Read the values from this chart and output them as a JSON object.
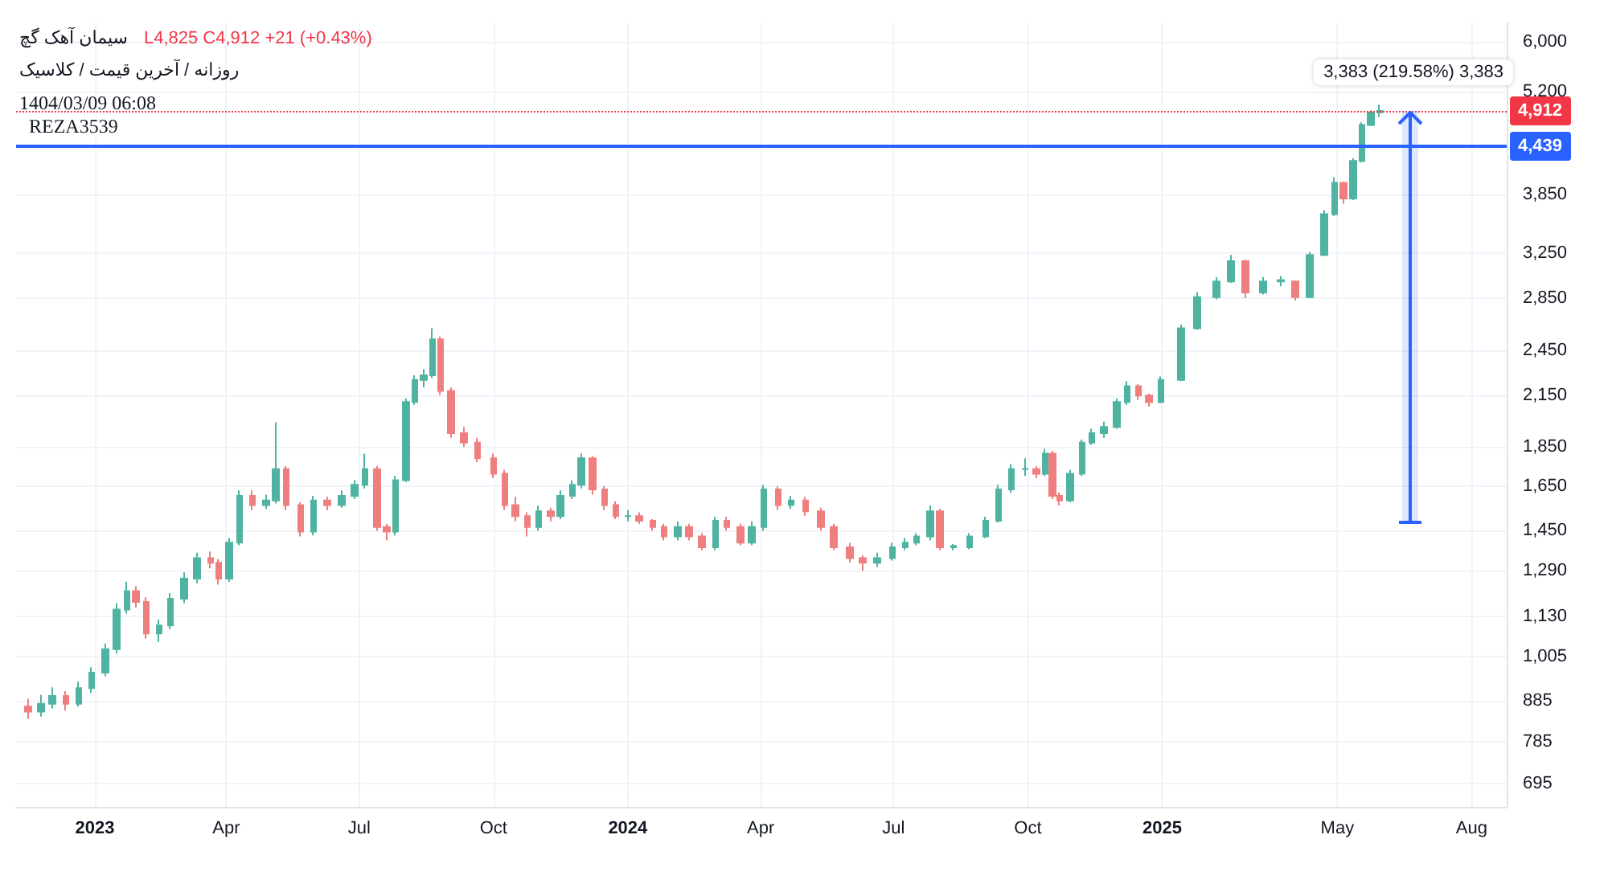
{
  "chart_data": {
    "type": "candlestick",
    "title": "سیمان آهک گچ",
    "subtitle": "روزانه / آخرین قیمت / کلاسیک",
    "annotations": [
      "L4,825 C4,912 +21 (+0.43%)",
      "1404/03/09 06:08",
      {
        "text": "3,383 (219.58%) 3,383",
        "x": "2025-06-20",
        "y": 4912
      },
      {
        "text": "4,912",
        "y": 4912
      },
      {
        "text": "4,439",
        "y": 4439
      }
    ],
    "x": [
      "2022-11-16",
      "2022-11-25",
      "2022-12-03",
      "2022-12-12",
      "2022-12-21",
      "2022-12-30",
      "2023-01-08",
      "2023-01-16",
      "2023-01-23",
      "2023-01-29",
      "2023-02-05",
      "2023-02-14",
      "2023-02-22",
      "2023-03-03",
      "2023-03-12",
      "2023-03-21",
      "2023-03-27",
      "2023-04-03",
      "2023-04-10",
      "2023-04-19",
      "2023-04-28",
      "2023-05-05",
      "2023-05-12",
      "2023-05-22",
      "2023-05-31",
      "2023-06-09",
      "2023-06-19",
      "2023-06-28",
      "2023-07-05",
      "2023-07-13",
      "2023-07-20",
      "2023-07-26",
      "2023-08-02",
      "2023-08-08",
      "2023-08-14",
      "2023-08-20",
      "2023-08-26",
      "2023-09-02",
      "2023-09-11",
      "2023-09-20",
      "2023-10-01",
      "2023-10-09",
      "2023-10-16",
      "2023-10-24",
      "2023-11-01",
      "2023-11-09",
      "2023-11-16",
      "2023-11-24",
      "2023-11-30",
      "2023-12-08",
      "2023-12-16",
      "2023-12-24",
      "2024-01-01",
      "2024-01-09",
      "2024-01-18",
      "2024-01-26",
      "2024-02-04",
      "2024-02-12",
      "2024-02-21",
      "2024-03-01",
      "2024-03-09",
      "2024-03-18",
      "2024-03-26",
      "2024-04-03",
      "2024-04-13",
      "2024-04-22",
      "2024-05-02",
      "2024-05-12",
      "2024-05-21",
      "2024-06-01",
      "2024-06-10",
      "2024-06-20",
      "2024-06-30",
      "2024-07-09",
      "2024-07-17",
      "2024-07-26",
      "2024-08-02",
      "2024-08-11",
      "2024-08-22",
      "2024-09-02",
      "2024-09-11",
      "2024-09-20",
      "2024-09-29",
      "2024-10-07",
      "2024-10-13",
      "2024-10-18",
      "2024-10-23",
      "2024-10-30",
      "2024-11-07",
      "2024-11-14",
      "2024-11-22",
      "2024-12-01",
      "2024-12-08",
      "2024-12-16",
      "2024-12-23",
      "2024-12-31",
      "2025-01-14",
      "2025-01-25",
      "2025-02-07",
      "2025-02-17",
      "2025-02-27",
      "2025-03-11",
      "2025-03-23",
      "2025-04-02",
      "2025-04-12",
      "2025-04-22",
      "2025-04-29",
      "2025-05-05",
      "2025-05-12",
      "2025-05-18",
      "2025-05-24",
      "2025-05-30"
    ],
    "ohlc": [
      [
        870,
        890,
        840,
        857
      ],
      [
        857,
        900,
        845,
        877
      ],
      [
        877,
        920,
        865,
        897
      ],
      [
        897,
        910,
        860,
        877
      ],
      [
        877,
        935,
        870,
        918
      ],
      [
        918,
        975,
        905,
        960
      ],
      [
        960,
        1045,
        950,
        1028
      ],
      [
        1028,
        1175,
        1015,
        1153
      ],
      [
        1153,
        1250,
        1140,
        1217
      ],
      [
        1217,
        1235,
        1160,
        1179
      ],
      [
        1179,
        1195,
        1060,
        1076
      ],
      [
        1076,
        1120,
        1050,
        1101
      ],
      [
        1101,
        1210,
        1090,
        1190
      ],
      [
        1190,
        1285,
        1175,
        1262
      ],
      [
        1262,
        1360,
        1245,
        1339
      ],
      [
        1339,
        1365,
        1300,
        1321
      ],
      [
        1321,
        1335,
        1240,
        1262
      ],
      [
        1262,
        1420,
        1250,
        1401
      ],
      [
        1401,
        1630,
        1390,
        1605
      ],
      [
        1605,
        1630,
        1540,
        1562
      ],
      [
        1562,
        1610,
        1545,
        1583
      ],
      [
        1583,
        1987,
        1570,
        1734
      ],
      [
        1734,
        1750,
        1540,
        1562
      ],
      [
        1562,
        1575,
        1426,
        1446
      ],
      [
        1446,
        1605,
        1430,
        1583
      ],
      [
        1583,
        1600,
        1540,
        1562
      ],
      [
        1562,
        1630,
        1550,
        1605
      ],
      [
        1605,
        1680,
        1590,
        1657
      ],
      [
        1657,
        1814,
        1640,
        1734
      ],
      [
        1734,
        1750,
        1450,
        1466
      ],
      [
        1466,
        1480,
        1410,
        1446
      ],
      [
        1446,
        1700,
        1430,
        1680
      ],
      [
        1680,
        2130,
        1670,
        2108
      ],
      [
        2108,
        2278,
        2090,
        2247
      ],
      [
        2247,
        2320,
        2200,
        2278
      ],
      [
        2278,
        2611,
        2260,
        2529
      ],
      [
        2529,
        2550,
        2150,
        2177
      ],
      [
        2177,
        2200,
        1900,
        1925
      ],
      [
        1925,
        1960,
        1850,
        1873
      ],
      [
        1873,
        1900,
        1770,
        1790
      ],
      [
        1790,
        1814,
        1690,
        1711
      ],
      [
        1711,
        1730,
        1540,
        1562
      ],
      [
        1562,
        1600,
        1490,
        1513
      ],
      [
        1513,
        1530,
        1426,
        1466
      ],
      [
        1466,
        1560,
        1450,
        1534
      ],
      [
        1534,
        1550,
        1490,
        1513
      ],
      [
        1513,
        1630,
        1500,
        1605
      ],
      [
        1605,
        1680,
        1590,
        1657
      ],
      [
        1657,
        1814,
        1640,
        1790
      ],
      [
        1790,
        1800,
        1610,
        1635
      ],
      [
        1635,
        1650,
        1540,
        1562
      ],
      [
        1562,
        1580,
        1500,
        1513
      ],
      [
        1513,
        1540,
        1490,
        1513
      ],
      [
        1513,
        1530,
        1480,
        1493
      ],
      [
        1493,
        1500,
        1450,
        1466
      ],
      [
        1466,
        1480,
        1410,
        1426
      ],
      [
        1426,
        1490,
        1410,
        1466
      ],
      [
        1466,
        1480,
        1410,
        1426
      ],
      [
        1426,
        1440,
        1370,
        1382
      ],
      [
        1382,
        1510,
        1370,
        1493
      ],
      [
        1493,
        1510,
        1450,
        1466
      ],
      [
        1466,
        1480,
        1390,
        1401
      ],
      [
        1401,
        1490,
        1390,
        1466
      ],
      [
        1466,
        1657,
        1450,
        1635
      ],
      [
        1635,
        1650,
        1540,
        1562
      ],
      [
        1562,
        1605,
        1545,
        1583
      ],
      [
        1583,
        1600,
        1515,
        1534
      ],
      [
        1534,
        1550,
        1450,
        1466
      ],
      [
        1466,
        1480,
        1370,
        1382
      ],
      [
        1382,
        1400,
        1321,
        1339
      ],
      [
        1339,
        1350,
        1290,
        1321
      ],
      [
        1321,
        1360,
        1305,
        1339
      ],
      [
        1339,
        1400,
        1330,
        1382
      ],
      [
        1382,
        1420,
        1370,
        1401
      ],
      [
        1401,
        1440,
        1390,
        1426
      ],
      [
        1426,
        1560,
        1410,
        1534
      ],
      [
        1534,
        1545,
        1370,
        1382
      ],
      [
        1382,
        1395,
        1370,
        1388
      ],
      [
        1382,
        1440,
        1375,
        1426
      ],
      [
        1426,
        1510,
        1420,
        1493
      ],
      [
        1493,
        1657,
        1485,
        1635
      ],
      [
        1635,
        1760,
        1620,
        1734
      ],
      [
        1734,
        1790,
        1700,
        1734
      ],
      [
        1734,
        1750,
        1690,
        1711
      ],
      [
        1711,
        1840,
        1700,
        1814
      ],
      [
        1814,
        1830,
        1590,
        1605
      ],
      [
        1605,
        1620,
        1560,
        1583
      ],
      [
        1583,
        1730,
        1575,
        1711
      ],
      [
        1711,
        1890,
        1700,
        1873
      ],
      [
        1873,
        1950,
        1860,
        1925
      ],
      [
        1925,
        1990,
        1900,
        1960
      ],
      [
        1960,
        2130,
        1950,
        2108
      ],
      [
        2108,
        2240,
        2090,
        2207
      ],
      [
        2207,
        2220,
        2120,
        2147
      ],
      [
        2147,
        2160,
        2080,
        2108
      ],
      [
        2108,
        2270,
        2100,
        2247
      ],
      [
        2247,
        2640,
        2240,
        2611
      ],
      [
        2611,
        2900,
        2600,
        2859
      ],
      [
        2859,
        3030,
        2840,
        2992
      ],
      [
        2992,
        3232,
        2980,
        3174
      ],
      [
        3174,
        3190,
        2850,
        2898
      ],
      [
        2898,
        3030,
        2880,
        2992
      ],
      [
        2992,
        3040,
        2950,
        3005
      ],
      [
        2992,
        3000,
        2830,
        2859
      ],
      [
        2859,
        3260,
        2850,
        3232
      ],
      [
        3232,
        3680,
        3220,
        3639
      ],
      [
        3639,
        4050,
        3620,
        3985
      ],
      [
        3985,
        4000,
        3750,
        3808
      ],
      [
        3808,
        4280,
        3790,
        4247
      ],
      [
        4247,
        4750,
        4230,
        4715
      ],
      [
        4715,
        4920,
        4700,
        4891
      ],
      [
        4891,
        5002,
        4825,
        4912
      ]
    ],
    "colors": [
      "#ef7f7f",
      "#4fb3a2",
      "#4fb3a2",
      "#ef7f7f",
      "#4fb3a2",
      "#4fb3a2",
      "#4fb3a2",
      "#4fb3a2",
      "#4fb3a2",
      "#ef7f7f",
      "#ef7f7f",
      "#4fb3a2",
      "#4fb3a2",
      "#4fb3a2",
      "#4fb3a2",
      "#ef7f7f",
      "#ef7f7f",
      "#4fb3a2",
      "#4fb3a2",
      "#ef7f7f",
      "#4fb3a2",
      "#4fb3a2",
      "#ef7f7f",
      "#ef7f7f",
      "#4fb3a2",
      "#ef7f7f",
      "#4fb3a2",
      "#4fb3a2",
      "#4fb3a2",
      "#ef7f7f",
      "#ef7f7f",
      "#4fb3a2",
      "#4fb3a2",
      "#4fb3a2",
      "#4fb3a2",
      "#4fb3a2",
      "#ef7f7f",
      "#ef7f7f",
      "#ef7f7f",
      "#ef7f7f",
      "#ef7f7f",
      "#ef7f7f",
      "#ef7f7f",
      "#ef7f7f",
      "#4fb3a2",
      "#ef7f7f",
      "#4fb3a2",
      "#4fb3a2",
      "#4fb3a2",
      "#ef7f7f",
      "#ef7f7f",
      "#ef7f7f",
      "#4fb3a2",
      "#ef7f7f",
      "#ef7f7f",
      "#ef7f7f",
      "#4fb3a2",
      "#ef7f7f",
      "#ef7f7f",
      "#4fb3a2",
      "#ef7f7f",
      "#ef7f7f",
      "#4fb3a2",
      "#4fb3a2",
      "#ef7f7f",
      "#4fb3a2",
      "#ef7f7f",
      "#ef7f7f",
      "#ef7f7f",
      "#ef7f7f",
      "#ef7f7f",
      "#4fb3a2",
      "#4fb3a2",
      "#4fb3a2",
      "#4fb3a2",
      "#4fb3a2",
      "#ef7f7f",
      "#4fb3a2",
      "#4fb3a2",
      "#4fb3a2",
      "#4fb3a2",
      "#4fb3a2",
      "#4fb3a2",
      "#ef7f7f",
      "#4fb3a2",
      "#ef7f7f",
      "#ef7f7f",
      "#4fb3a2",
      "#4fb3a2",
      "#4fb3a2",
      "#4fb3a2",
      "#4fb3a2",
      "#4fb3a2",
      "#ef7f7f",
      "#ef7f7f",
      "#4fb3a2",
      "#4fb3a2",
      "#4fb3a2",
      "#4fb3a2",
      "#4fb3a2",
      "#ef7f7f",
      "#4fb3a2",
      "#4fb3a2",
      "#ef7f7f",
      "#4fb3a2",
      "#4fb3a2",
      "#4fb3a2",
      "#ef7f7f",
      "#4fb3a2",
      "#4fb3a2",
      "#4fb3a2",
      "#4fb3a2"
    ],
    "log": "y",
    "ylim": [
      650,
      6350
    ],
    "yticks": [
      695,
      785,
      885,
      {
        "value": 1005,
        "label": "1,005"
      },
      {
        "value": 1130,
        "label": "1,130"
      },
      {
        "value": 1290,
        "label": "1,290"
      },
      {
        "value": 1450,
        "label": "1,450"
      },
      {
        "value": 1650,
        "label": "1,650"
      },
      {
        "value": 1850,
        "label": "1,850"
      },
      {
        "value": 2150,
        "label": "2,150"
      },
      {
        "value": 2450,
        "label": "2,450"
      },
      {
        "value": 2850,
        "label": "2,850"
      },
      {
        "value": 3250,
        "label": "3,250"
      },
      {
        "value": 3850,
        "label": "3,850"
      },
      {
        "value": 5200,
        "label": "5,200"
      },
      {
        "value": 6000,
        "label": "6,000"
      }
    ],
    "xlim": [
      "2022-11-08",
      "2025-08-25"
    ],
    "xticks": [
      {
        "value": "2023-01-01",
        "label": "2023"
      },
      {
        "value": "2023-04-01",
        "label": "Apr"
      },
      {
        "value": "2023-07-01",
        "label": "Jul"
      },
      {
        "value": "2023-10-01",
        "label": "Oct"
      },
      {
        "value": "2024-01-01",
        "label": "2024"
      },
      {
        "value": "2024-04-01",
        "label": "Apr"
      },
      {
        "value": "2024-07-01",
        "label": "Jul"
      },
      {
        "value": "2024-10-01",
        "label": "Oct"
      },
      {
        "value": "2025-01-01",
        "label": "2025"
      },
      {
        "value": "2025-05-01",
        "label": "May"
      },
      {
        "value": "2025-08-01",
        "label": "Aug"
      }
    ],
    "ref_lines": [
      {
        "axis": "y",
        "value": 4912,
        "color": "#f23645",
        "line_style": "dotted"
      },
      {
        "axis": "y",
        "value": 4439,
        "label": "REZA3539",
        "color": "#2962ff",
        "line_style": "solid"
      }
    ],
    "grid": true
  }
}
